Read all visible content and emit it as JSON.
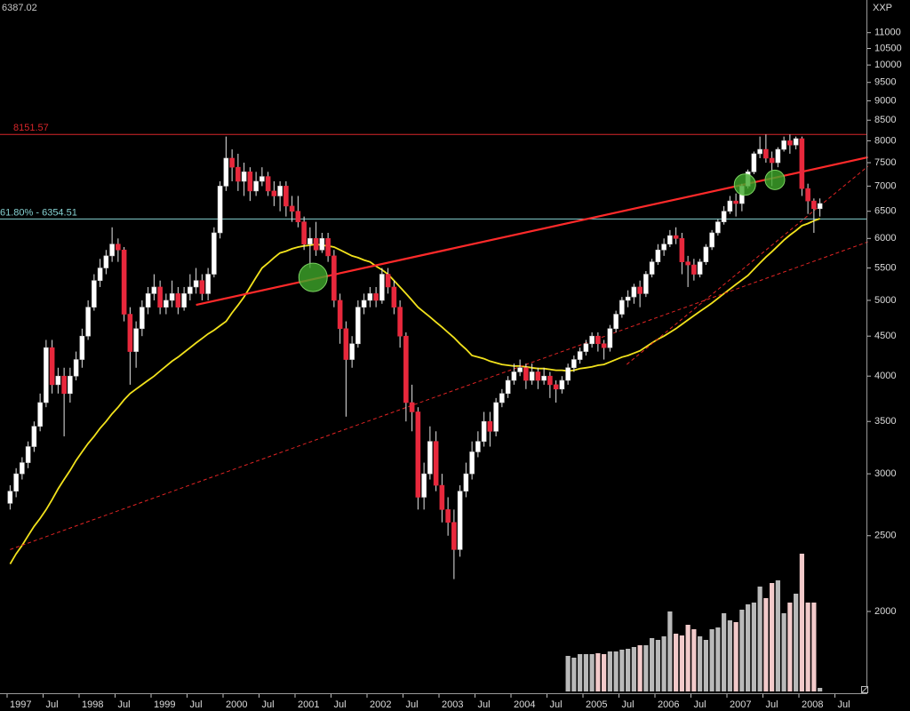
{
  "chart_data": {
    "type": "candlestick",
    "last_price": "6387.02",
    "symbol": "XXP",
    "log_scale": true,
    "ylim": [
      1572,
      12110
    ],
    "yticks": [
      2000,
      2500,
      3000,
      3500,
      4000,
      4500,
      5000,
      5500,
      6000,
      6500,
      7000,
      7500,
      8000,
      8500,
      9000,
      9500,
      10000,
      10500,
      11000
    ],
    "up_color": "#ffffff",
    "down_color": "#e8283c",
    "categories": [
      "1997",
      null,
      null,
      null,
      null,
      null,
      "Jul",
      null,
      null,
      null,
      null,
      null,
      "1998",
      null,
      null,
      null,
      null,
      null,
      "Jul",
      null,
      null,
      null,
      null,
      null,
      "1999",
      null,
      null,
      null,
      null,
      null,
      "Jul",
      null,
      null,
      null,
      null,
      null,
      "2000",
      null,
      null,
      null,
      null,
      null,
      "Jul",
      null,
      null,
      null,
      null,
      null,
      "2001",
      null,
      null,
      null,
      null,
      null,
      "Jul",
      null,
      null,
      null,
      null,
      null,
      "2002",
      null,
      null,
      null,
      null,
      null,
      "Jul",
      null,
      null,
      null,
      null,
      null,
      "2003",
      null,
      null,
      null,
      null,
      null,
      "Jul",
      null,
      null,
      null,
      null,
      null,
      "2004",
      null,
      null,
      null,
      null,
      null,
      "Jul",
      null,
      null,
      null,
      null,
      null,
      "2005",
      null,
      null,
      null,
      null,
      null,
      "Jul",
      null,
      null,
      null,
      null,
      null,
      "2006",
      null,
      null,
      null,
      null,
      null,
      "Jul",
      null,
      null,
      null,
      null,
      null,
      "2007",
      null,
      null,
      null,
      null,
      null,
      "Jul",
      null,
      null,
      null,
      null,
      null,
      "2008",
      null,
      null,
      null,
      null,
      null,
      "Jul",
      null,
      null,
      null,
      null,
      null
    ],
    "open": [
      2750,
      2850,
      3000,
      3100,
      3250,
      3450,
      3700,
      4350,
      3900,
      4000,
      3800,
      4000,
      4200,
      4500,
      4900,
      5300,
      5500,
      5700,
      5900,
      5800,
      4800,
      4300,
      4600,
      4900,
      5100,
      5200,
      4900,
      5000,
      5100,
      4900,
      5100,
      5200,
      5300,
      5100,
      5400,
      6100,
      7000,
      7600,
      7400,
      7100,
      7300,
      6900,
      7100,
      7200,
      6900,
      6800,
      7000,
      6600,
      6500,
      6300,
      5900,
      6000,
      5800,
      6000,
      5700,
      5000,
      4600,
      4200,
      4400,
      4900,
      5000,
      5100,
      5000,
      5400,
      5200,
      4900,
      4500,
      3700,
      3600,
      2800,
      3000,
      3300,
      2900,
      2700,
      2600,
      2400,
      2850,
      3000,
      3200,
      3300,
      3500,
      3400,
      3700,
      3800,
      3950,
      4050,
      4100,
      3950,
      4050,
      3950,
      4000,
      3900,
      3850,
      3950,
      4100,
      4200,
      4300,
      4400,
      4500,
      4400,
      4350,
      4600,
      4800,
      5000,
      5050,
      5200,
      5100,
      5400,
      5600,
      5800,
      5900,
      6050,
      6000,
      5600,
      5550,
      5400,
      5600,
      5850,
      6100,
      6300,
      6500,
      6700,
      6650,
      7000,
      7300,
      7700,
      7800,
      7600,
      7500,
      7800,
      8000,
      7900,
      8050,
      6950,
      6700,
      6550,
      null,
      null,
      null,
      null,
      null,
      null,
      null,
      null
    ],
    "high": [
      2900,
      3050,
      3150,
      3300,
      3500,
      3800,
      4450,
      4450,
      4100,
      4100,
      4100,
      4300,
      4600,
      5000,
      5400,
      5650,
      5800,
      6200,
      6000,
      5850,
      4900,
      4700,
      5000,
      5200,
      5400,
      5300,
      5100,
      5300,
      5200,
      5200,
      5400,
      5500,
      5400,
      5500,
      6200,
      7100,
      8100,
      7800,
      7700,
      7500,
      7400,
      7300,
      7400,
      7300,
      7100,
      7100,
      7100,
      6800,
      6800,
      6400,
      6200,
      6300,
      6100,
      6100,
      5800,
      5100,
      4700,
      4500,
      5000,
      5100,
      5200,
      5200,
      5500,
      5500,
      5300,
      5000,
      4550,
      3900,
      3650,
      3100,
      3450,
      3400,
      3000,
      2800,
      2700,
      2900,
      3100,
      3300,
      3400,
      3600,
      3600,
      3750,
      3850,
      4000,
      4150,
      4200,
      4150,
      4150,
      4100,
      4100,
      4050,
      3950,
      4000,
      4150,
      4250,
      4350,
      4450,
      4550,
      4550,
      4450,
      4650,
      4850,
      5050,
      5150,
      5250,
      5300,
      5450,
      5650,
      5900,
      6000,
      6150,
      6200,
      6100,
      5700,
      5650,
      5650,
      5900,
      6150,
      6350,
      6600,
      6800,
      6850,
      7050,
      7350,
      7750,
      8100,
      8150,
      7750,
      7850,
      8100,
      8150,
      8100,
      8100,
      7050,
      6750,
      6750,
      null,
      null,
      null,
      null,
      null,
      null,
      null,
      null
    ],
    "low": [
      2700,
      2800,
      2950,
      3050,
      3200,
      3400,
      3650,
      3800,
      3800,
      3350,
      3700,
      3950,
      4100,
      4450,
      4850,
      5200,
      5400,
      5600,
      5600,
      4700,
      3900,
      4100,
      4500,
      4800,
      5000,
      4800,
      4800,
      4900,
      4800,
      4850,
      5000,
      5100,
      5000,
      5000,
      5350,
      6000,
      6900,
      7100,
      6900,
      6800,
      6700,
      6800,
      7000,
      6800,
      6600,
      6500,
      6400,
      6300,
      6200,
      5800,
      5500,
      5700,
      5750,
      5600,
      4900,
      4400,
      3550,
      4100,
      4350,
      4800,
      4900,
      4900,
      4950,
      5100,
      4800,
      4350,
      3500,
      3400,
      2700,
      2700,
      2950,
      2850,
      2600,
      2500,
      2200,
      2350,
      2800,
      2950,
      3150,
      3250,
      3250,
      3350,
      3650,
      3750,
      3900,
      4000,
      3850,
      3900,
      3850,
      3900,
      3750,
      3700,
      3800,
      3900,
      4050,
      4150,
      4250,
      4350,
      4300,
      4200,
      4300,
      4550,
      4750,
      4900,
      4950,
      4900,
      5050,
      5350,
      5550,
      5700,
      5850,
      5900,
      5400,
      5200,
      5300,
      5350,
      5550,
      5800,
      6050,
      6250,
      6450,
      6400,
      6500,
      6950,
      7250,
      7600,
      7500,
      7000,
      7400,
      7750,
      7700,
      7800,
      6800,
      6450,
      6100,
      6400,
      null,
      null,
      null,
      null,
      null,
      null,
      null,
      null
    ],
    "close": [
      2850,
      3000,
      3100,
      3250,
      3450,
      3700,
      4350,
      3900,
      4000,
      3800,
      4000,
      4200,
      4500,
      4900,
      5300,
      5500,
      5700,
      5900,
      5800,
      4800,
      4300,
      4600,
      4900,
      5100,
      5200,
      4900,
      5000,
      5100,
      4900,
      5100,
      5200,
      5300,
      5100,
      5400,
      6100,
      7000,
      7600,
      7400,
      7100,
      7300,
      6900,
      7100,
      7200,
      6900,
      6800,
      7000,
      6600,
      6500,
      6300,
      5900,
      6000,
      5800,
      6000,
      5700,
      5000,
      4600,
      4200,
      4400,
      4900,
      5000,
      5100,
      5000,
      5400,
      5200,
      4900,
      4500,
      3700,
      3600,
      2800,
      3000,
      3300,
      2900,
      2700,
      2600,
      2400,
      2850,
      3000,
      3200,
      3300,
      3500,
      3400,
      3700,
      3800,
      3950,
      4050,
      4100,
      3950,
      4050,
      3950,
      4000,
      3900,
      3850,
      3950,
      4100,
      4200,
      4300,
      4400,
      4500,
      4400,
      4350,
      4600,
      4800,
      5000,
      5050,
      5200,
      5100,
      5400,
      5600,
      5800,
      5900,
      6050,
      6000,
      5600,
      5550,
      5400,
      5600,
      5850,
      6100,
      6300,
      6500,
      6700,
      6650,
      7000,
      7300,
      7700,
      7800,
      7600,
      7500,
      7800,
      8000,
      7900,
      8050,
      6950,
      6700,
      6550,
      6650,
      null,
      null,
      null,
      null,
      null,
      null,
      null,
      null
    ],
    "moving_average": {
      "color": "#f2e21c",
      "values": [
        2300,
        2370,
        2430,
        2500,
        2570,
        2630,
        2700,
        2780,
        2870,
        2950,
        3030,
        3120,
        3200,
        3280,
        3350,
        3430,
        3500,
        3580,
        3650,
        3730,
        3800,
        3850,
        3900,
        3950,
        4000,
        4060,
        4120,
        4180,
        4230,
        4290,
        4350,
        4410,
        4470,
        4530,
        4580,
        4640,
        4700,
        4820,
        4930,
        5050,
        5200,
        5350,
        5500,
        5580,
        5670,
        5750,
        5780,
        5820,
        5850,
        5870,
        5880,
        5900,
        5880,
        5870,
        5850,
        5800,
        5750,
        5700,
        5670,
        5630,
        5600,
        5530,
        5470,
        5400,
        5300,
        5200,
        5100,
        5000,
        4900,
        4830,
        4760,
        4690,
        4620,
        4550,
        4480,
        4400,
        4330,
        4250,
        4230,
        4210,
        4180,
        4160,
        4140,
        4130,
        4120,
        4120,
        4110,
        4100,
        4090,
        4090,
        4080,
        4070,
        4070,
        4060,
        4070,
        4090,
        4100,
        4110,
        4130,
        4140,
        4170,
        4200,
        4230,
        4250,
        4280,
        4310,
        4360,
        4410,
        4460,
        4500,
        4550,
        4600,
        4660,
        4720,
        4780,
        4840,
        4900,
        4960,
        5030,
        5100,
        5170,
        5240,
        5310,
        5380,
        5480,
        5580,
        5680,
        5770,
        5870,
        5970,
        6060,
        6140,
        6230,
        6270,
        6320,
        6360,
        null,
        null,
        null,
        null,
        null,
        null,
        null,
        null
      ]
    },
    "volume": {
      "up_color": "#b9b9b9",
      "down_color": "#f2caca",
      "values": [
        null,
        null,
        null,
        null,
        null,
        null,
        null,
        null,
        null,
        null,
        null,
        null,
        null,
        null,
        null,
        null,
        null,
        null,
        null,
        null,
        null,
        null,
        null,
        null,
        null,
        null,
        null,
        null,
        null,
        null,
        null,
        null,
        null,
        null,
        null,
        null,
        null,
        null,
        null,
        null,
        null,
        null,
        null,
        null,
        null,
        null,
        null,
        null,
        null,
        null,
        null,
        null,
        null,
        null,
        null,
        null,
        null,
        null,
        null,
        null,
        null,
        null,
        null,
        null,
        null,
        null,
        null,
        null,
        null,
        null,
        null,
        null,
        null,
        null,
        null,
        null,
        null,
        null,
        null,
        null,
        null,
        null,
        null,
        null,
        null,
        null,
        null,
        null,
        null,
        null,
        null,
        null,
        null,
        40,
        38,
        42,
        42,
        42,
        43,
        42,
        45,
        45,
        47,
        48,
        50,
        52,
        52,
        60,
        58,
        62,
        90,
        65,
        63,
        75,
        70,
        62,
        58,
        70,
        72,
        88,
        80,
        78,
        92,
        98,
        100,
        118,
        105,
        122,
        125,
        88,
        100,
        110,
        155,
        100,
        100,
        4,
        null,
        null,
        null,
        null,
        null,
        null,
        null,
        null
      ]
    },
    "horizontal_lines": [
      {
        "value": 8151.57,
        "color": "#d8262a"
      },
      {
        "value": 6354.51,
        "label": "61.80% - 6354.51",
        "color": "#86d2d2"
      }
    ],
    "trendlines": [
      {
        "color": "#ff2a2a",
        "dashed": false,
        "from": [
          31,
          4934
        ],
        "to": [
          143,
          7620
        ]
      },
      {
        "color": "#e02424",
        "dashed": true,
        "from": [
          0,
          2400
        ],
        "to": [
          143,
          5940
        ]
      },
      {
        "color": "#e02424",
        "dashed": true,
        "from": [
          102.8,
          4140
        ],
        "to": [
          143,
          7420
        ]
      }
    ],
    "markers": [
      {
        "x": 50.5,
        "y": 5350,
        "color": "#3fa82a"
      },
      {
        "x": 122.5,
        "y": 7030,
        "color": "#3fa82a"
      },
      {
        "x": 127.5,
        "y": 7130,
        "color": "#3fa82a"
      }
    ]
  }
}
